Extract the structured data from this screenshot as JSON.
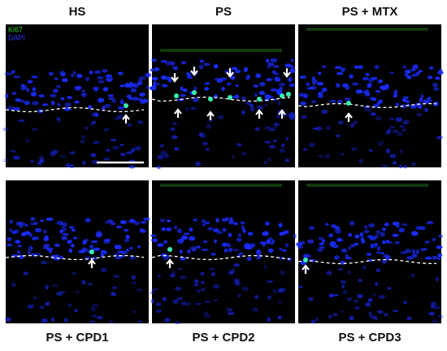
{
  "panels": [
    {
      "label": "HS"
    },
    {
      "label": "PS"
    },
    {
      "label": "PS + MTX"
    },
    {
      "label": "PS + CPD1"
    },
    {
      "label": "PS + CPD2"
    },
    {
      "label": "PS + CPD3"
    }
  ],
  "stain_legend": {
    "ki67": "Ki67",
    "dapi": "DAPI"
  }
}
